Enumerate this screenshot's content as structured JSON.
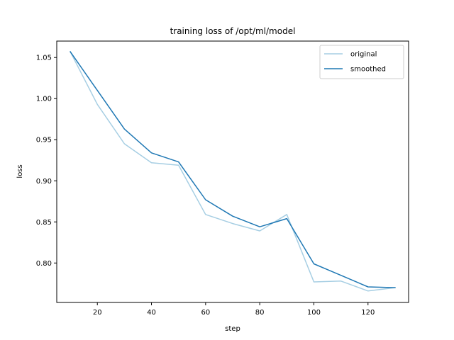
{
  "chart_data": {
    "type": "line",
    "title": "training loss of /opt/ml/model",
    "xlabel": "step",
    "ylabel": "loss",
    "xlim": [
      5,
      135
    ],
    "ylim": [
      0.752,
      1.07
    ],
    "xticks": [
      20,
      40,
      60,
      80,
      100,
      120
    ],
    "yticks": [
      0.8,
      0.85,
      0.9,
      0.95,
      1.0,
      1.05
    ],
    "grid": false,
    "legend": "top-right",
    "x": [
      10,
      20,
      30,
      40,
      50,
      60,
      70,
      80,
      90,
      100,
      110,
      120,
      130
    ],
    "series": [
      {
        "name": "original",
        "color": "#a6cee3",
        "values": [
          1.057,
          0.993,
          0.945,
          0.922,
          0.919,
          0.859,
          0.848,
          0.839,
          0.859,
          0.777,
          0.778,
          0.766,
          0.77
        ]
      },
      {
        "name": "smoothed",
        "color": "#1f78b4",
        "values": [
          1.057,
          1.01,
          0.963,
          0.934,
          0.923,
          0.877,
          0.857,
          0.844,
          0.854,
          0.799,
          0.785,
          0.771,
          0.77
        ]
      }
    ]
  }
}
